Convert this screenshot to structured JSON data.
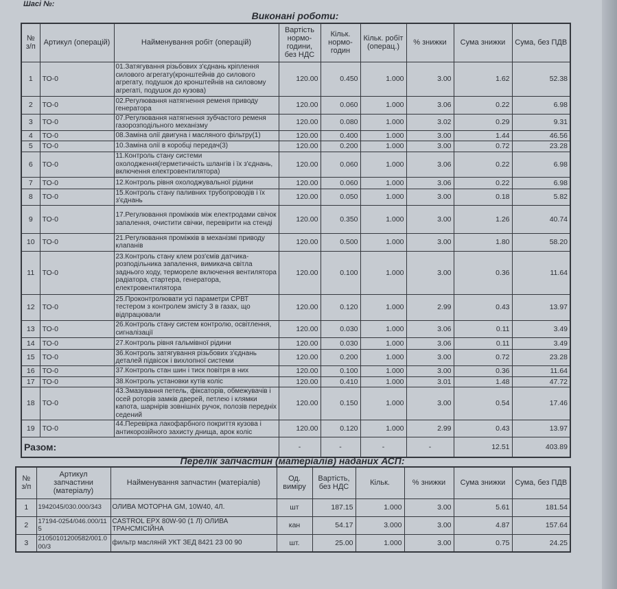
{
  "chassis_label": "Шасі №:",
  "works": {
    "title": "Виконані роботи:",
    "headers": [
      "№ з/п",
      "Артикул (операцій)",
      "Найменування робіт (операцій)",
      "Вартість нормо-години, без НДС",
      "Кільк. нормо-годин",
      "Кільк. робіт (операц.)",
      "% знижки",
      "Сума знижки",
      "Сума, без ПДВ"
    ],
    "rows": [
      {
        "n": "1",
        "art": "ТО-0",
        "name": "01.Затягування різьбових з'єднань кріплення силового агрегату(кронштейнів до силового агрегату, подушок до кронштейнів на силовому агрегаті, подушок до кузова)",
        "price": "120.00",
        "hours": "0.450",
        "qty": "1.000",
        "pct": "3.00",
        "disc": "1.62",
        "sum": "52.38"
      },
      {
        "n": "2",
        "art": "ТО-0",
        "name": "02.Регулювання натягнення ременя приводу генератора",
        "price": "120.00",
        "hours": "0.060",
        "qty": "1.000",
        "pct": "3.06",
        "disc": "0.22",
        "sum": "6.98"
      },
      {
        "n": "3",
        "art": "ТО-0",
        "name": "07.Регулювання натягнення зубчастого ременя газорозподільного механізму",
        "price": "120.00",
        "hours": "0.080",
        "qty": "1.000",
        "pct": "3.02",
        "disc": "0.29",
        "sum": "9.31"
      },
      {
        "n": "4",
        "art": "ТО-0",
        "name": "08.Заміна олії двигуна і масляного фільтру(1)",
        "price": "120.00",
        "hours": "0.400",
        "qty": "1.000",
        "pct": "3.00",
        "disc": "1.44",
        "sum": "46.56"
      },
      {
        "n": "5",
        "art": "ТО-0",
        "name": "10.Заміна олії в коробці передач(3)",
        "price": "120.00",
        "hours": "0.200",
        "qty": "1.000",
        "pct": "3.00",
        "disc": "0.72",
        "sum": "23.28"
      },
      {
        "n": "6",
        "art": "ТО-0",
        "name": "11.Контроль стану системи охолодження(герметичність шлангів і їх з'єднань, включення електровентилятора)",
        "price": "120.00",
        "hours": "0.060",
        "qty": "1.000",
        "pct": "3.06",
        "disc": "0.22",
        "sum": "6.98"
      },
      {
        "n": "7",
        "art": "ТО-0",
        "name": "12.Контроль рівня охолоджувальної рідини",
        "price": "120.00",
        "hours": "0.060",
        "qty": "1.000",
        "pct": "3.06",
        "disc": "0.22",
        "sum": "6.98"
      },
      {
        "n": "8",
        "art": "ТО-0",
        "name": "15.Контроль стану паливних трубопроводів і їх з'єднань",
        "price": "120.00",
        "hours": "0.050",
        "qty": "1.000",
        "pct": "3.00",
        "disc": "0.18",
        "sum": "5.82"
      },
      {
        "n": "9",
        "art": "ТО-0",
        "name": "17.Регулювання проміжків між електродами свічок запалення, очистити свічки, перевірити на стенді",
        "price": "120.00",
        "hours": "0.350",
        "qty": "1.000",
        "pct": "3.00",
        "disc": "1.26",
        "sum": "40.74"
      },
      {
        "n": "10",
        "art": "ТО-0",
        "name": "21.Регулювання проміжків в механізмі приводу клапанів",
        "price": "120.00",
        "hours": "0.500",
        "qty": "1.000",
        "pct": "3.00",
        "disc": "1.80",
        "sum": "58.20"
      },
      {
        "n": "11",
        "art": "ТО-0",
        "name": "23.Контроль стану клем роз'ємів датчика-розподільника запалення, вимикача світла заднього ходу, термореле включення вентилятора радіатора, стартера, генератора, електровентилятора",
        "price": "120.00",
        "hours": "0.100",
        "qty": "1.000",
        "pct": "3.00",
        "disc": "0.36",
        "sum": "11.64"
      },
      {
        "n": "12",
        "art": "ТО-0",
        "name": "25.Проконтролювати усі параметри СРВТ тестером з контролем змісту 3 в газах, що відпрацювали",
        "price": "120.00",
        "hours": "0.120",
        "qty": "1.000",
        "pct": "2.99",
        "disc": "0.43",
        "sum": "13.97"
      },
      {
        "n": "13",
        "art": "ТО-0",
        "name": "26.Контроль стану систем контролю, освітлення, сигналізації",
        "price": "120.00",
        "hours": "0.030",
        "qty": "1.000",
        "pct": "3.06",
        "disc": "0.11",
        "sum": "3.49"
      },
      {
        "n": "14",
        "art": "ТО-0",
        "name": "27.Контроль рівня гальмівної рідини",
        "price": "120.00",
        "hours": "0.030",
        "qty": "1.000",
        "pct": "3.06",
        "disc": "0.11",
        "sum": "3.49"
      },
      {
        "n": "15",
        "art": "ТО-0",
        "name": "36.Контроль затягування різьбових з'єднань деталей підвісок і вихлопної системи",
        "price": "120.00",
        "hours": "0.200",
        "qty": "1.000",
        "pct": "3.00",
        "disc": "0.72",
        "sum": "23.28"
      },
      {
        "n": "16",
        "art": "ТО-0",
        "name": "37.Контроль стан шин і тиск повітря в них",
        "price": "120.00",
        "hours": "0.100",
        "qty": "1.000",
        "pct": "3.00",
        "disc": "0.36",
        "sum": "11.64"
      },
      {
        "n": "17",
        "art": "ТО-0",
        "name": "38.Контроль установки кутів коліс",
        "price": "120.00",
        "hours": "0.410",
        "qty": "1.000",
        "pct": "3.01",
        "disc": "1.48",
        "sum": "47.72"
      },
      {
        "n": "18",
        "art": "ТО-0",
        "name": "43.Змазування петель, фіксаторів, обмежувачів і осей роторів замків дверей, петлею і клямки капота, шарнірів зовнішніх ручок, полозів передніх седений",
        "price": "120.00",
        "hours": "0.150",
        "qty": "1.000",
        "pct": "3.00",
        "disc": "0.54",
        "sum": "17.46"
      },
      {
        "n": "19",
        "art": "ТО-0",
        "name": "44.Перевірка лакофарбного покриття кузова і антикорозійного захисту днища, арок коліс",
        "price": "120.00",
        "hours": "0.120",
        "qty": "1.000",
        "pct": "2.99",
        "disc": "0.43",
        "sum": "13.97"
      }
    ],
    "total": {
      "label": "Разом:",
      "price": "-",
      "hours": "-",
      "qty": "-",
      "pct": "-",
      "disc": "12.51",
      "sum": "403.89"
    }
  },
  "parts": {
    "title": "Перелік запчастин (матеріалів) наданих АСП:",
    "headers": [
      "№ з/п",
      "Артикул запчастини (матеріалу)",
      "Найменування запчастин (матеріалів)",
      "Од. виміру",
      "Вартість, без НДС",
      "Кільк.",
      "% знижки",
      "Сума знижки",
      "Сума, без ПДВ"
    ],
    "rows": [
      {
        "n": "1",
        "art": "1942045/030.000/343",
        "name": "ОЛИВА МОТОРНА GM, 10W40, 4Л.",
        "unit": "шт",
        "price": "187.15",
        "qty": "1.000",
        "pct": "3.00",
        "disc": "5.61",
        "sum": "181.54"
      },
      {
        "n": "2",
        "art": "17194-0254/046.000/115",
        "name": "CASTROL EPX 80W-90 (1 Л) ОЛИВА ТРАНСМІСІЙНА",
        "unit": "кан",
        "price": "54.17",
        "qty": "3.000",
        "pct": "3.00",
        "disc": "4.87",
        "sum": "157.64"
      },
      {
        "n": "3",
        "art": "21050101200582/001.000/3",
        "name": "фильтр масляній УКТ ЗЕД 8421 23 00 90",
        "unit": "шт.",
        "price": "25.00",
        "qty": "1.000",
        "pct": "3.00",
        "disc": "0.75",
        "sum": "24.25"
      }
    ]
  }
}
